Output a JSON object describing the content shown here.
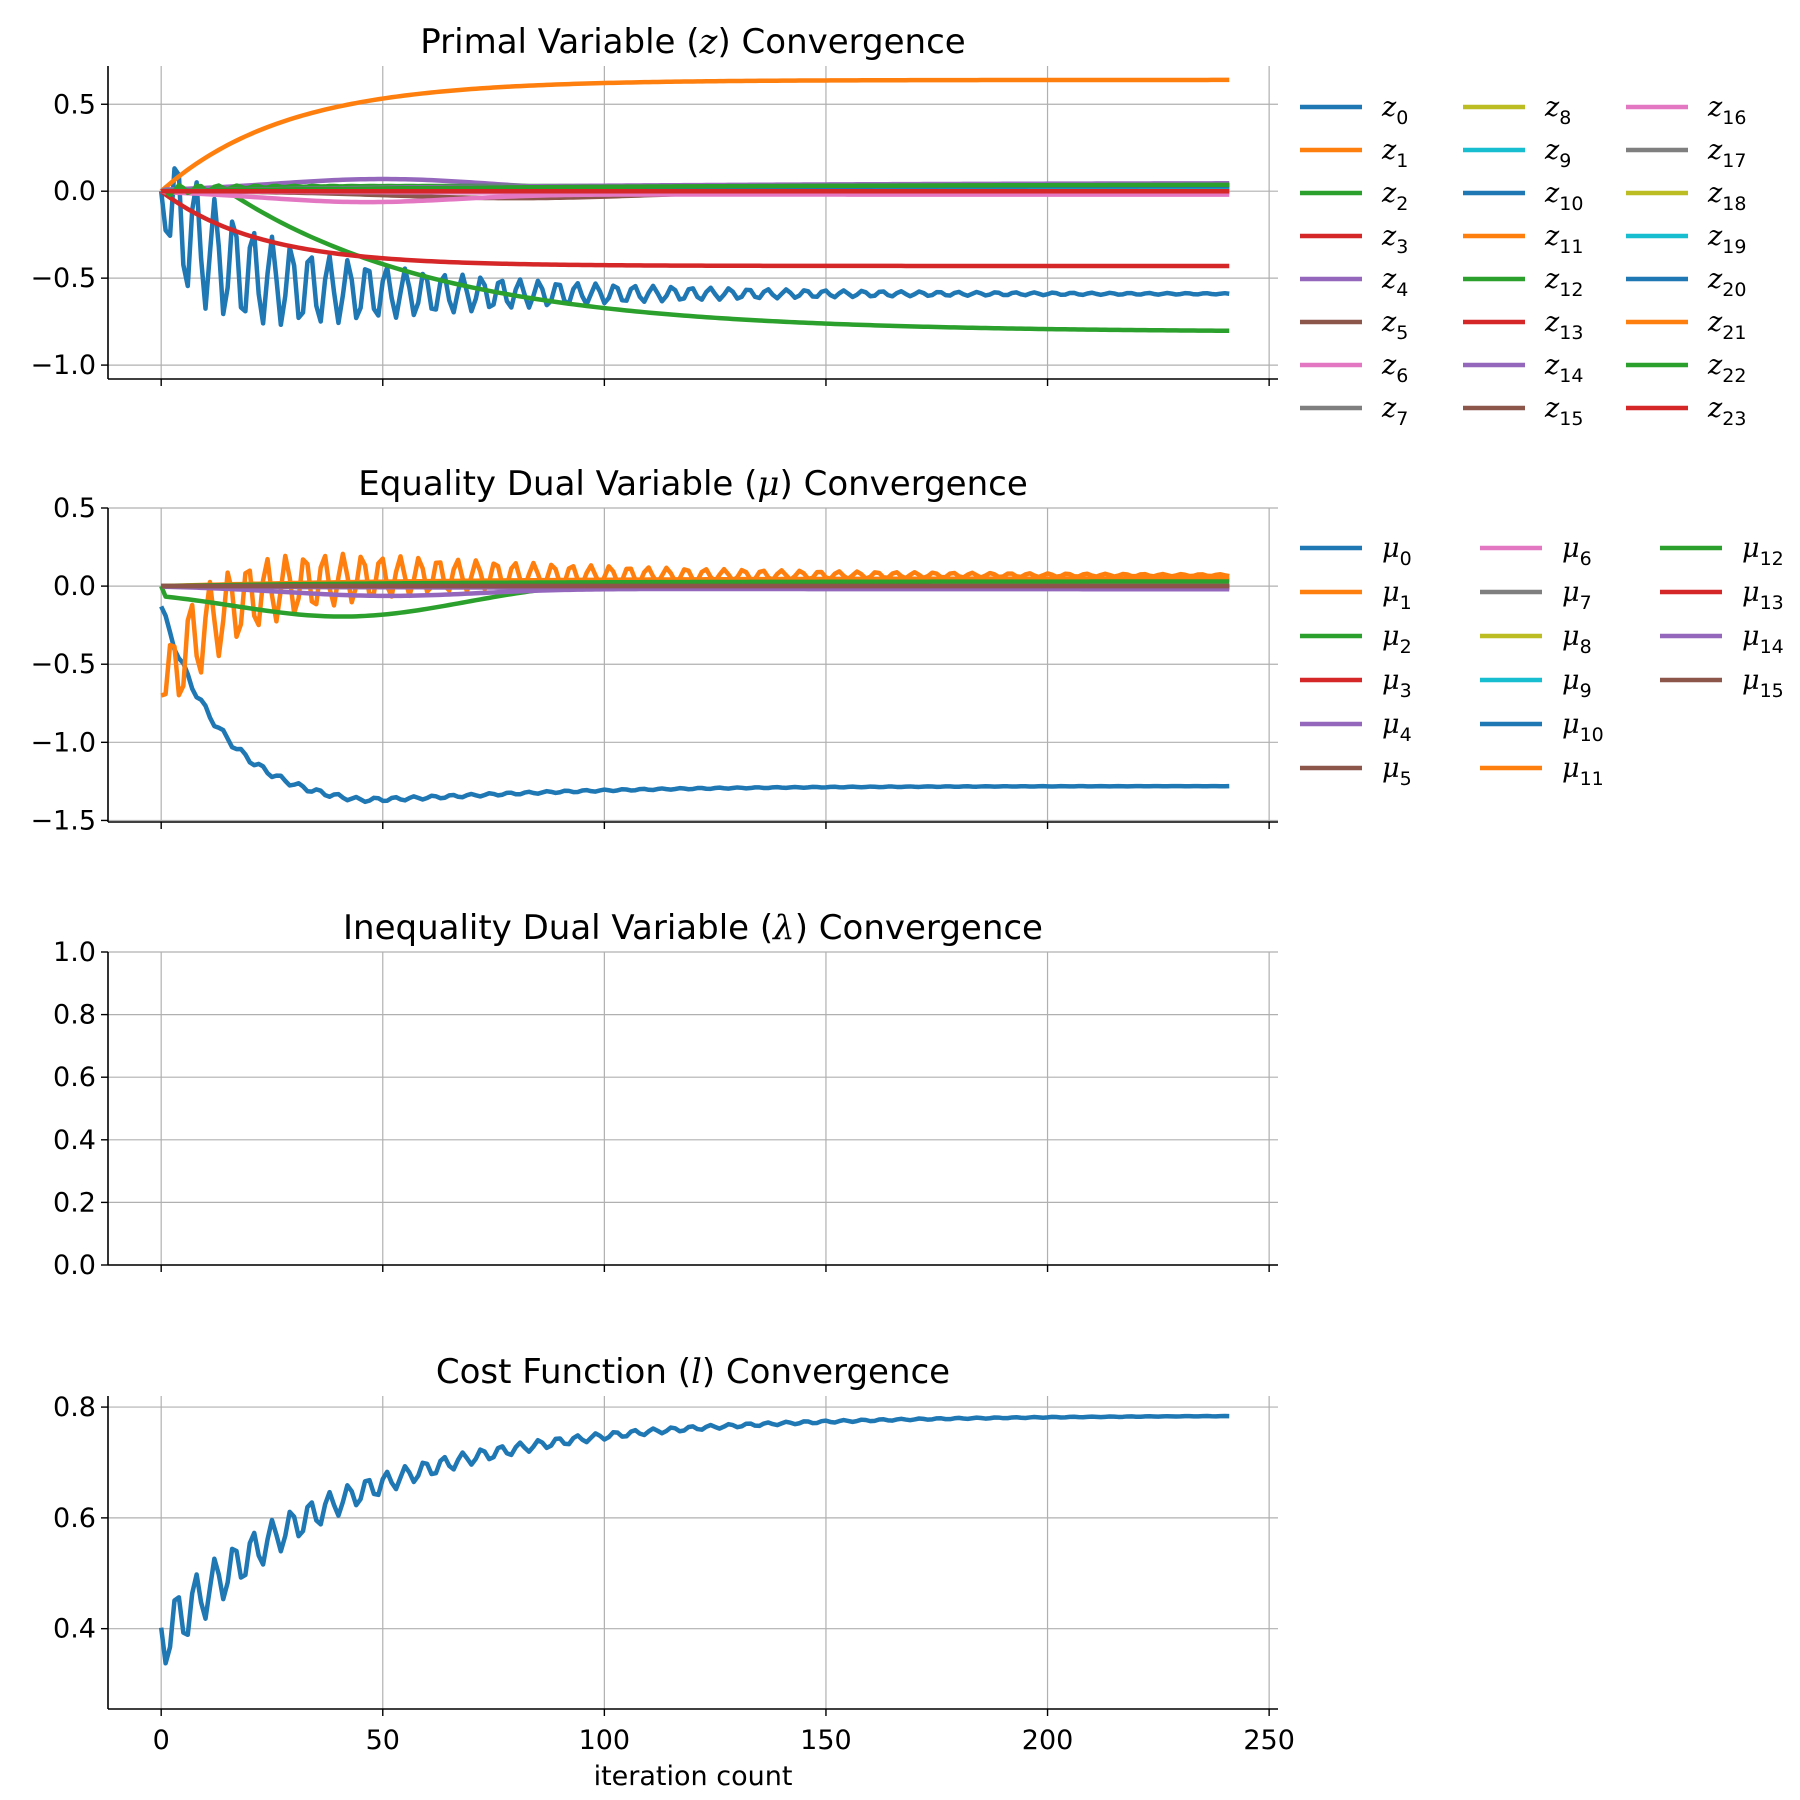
{
  "figure": {
    "xlabel": "iteration count"
  },
  "palette": [
    "#1f77b4",
    "#ff7f0e",
    "#2ca02c",
    "#d62728",
    "#9467bd",
    "#8c564b",
    "#e377c2",
    "#7f7f7f",
    "#bcbd22",
    "#17becf"
  ],
  "chart_data": [
    {
      "type": "line",
      "title": "Primal Variable (z) Convergence",
      "title_parts": [
        "Primal Variable (",
        "z",
        ") Convergence"
      ],
      "xlim": [
        -12,
        252
      ],
      "ylim": [
        -1.08,
        0.72
      ],
      "xticks": [
        0,
        50,
        100,
        150,
        200,
        250
      ],
      "show_xticklabels": false,
      "yticks": [
        -1.0,
        -0.5,
        0.0,
        0.5
      ],
      "ytick_labels": [
        "−1.0",
        "−0.5",
        "0.0",
        "0.5"
      ],
      "grid": true,
      "legend": {
        "position": "outside-right",
        "columns": 3,
        "symbol": "z"
      },
      "series": [
        {
          "name": "z0",
          "sub": "0",
          "color": "#1f77b4",
          "model": "oscillating_decay",
          "start": 0.0,
          "final": -0.59,
          "amp": 0.42,
          "decay": 50,
          "period": 4.3,
          "phase": 1.2
        },
        {
          "name": "z1",
          "sub": "1",
          "color": "#ff7f0e",
          "model": "saturating",
          "start": 0.0,
          "final": 0.64,
          "rate": 28
        },
        {
          "name": "z2",
          "sub": "2",
          "color": "#2ca02c",
          "model": "saturating",
          "start": 0.0,
          "final": -0.81,
          "rate": 48,
          "delay": 15
        },
        {
          "name": "z3",
          "sub": "3",
          "color": "#d62728",
          "model": "saturating",
          "start": 0.0,
          "final": -0.43,
          "rate": 22
        },
        {
          "name": "z4",
          "sub": "4",
          "color": "#9467bd",
          "model": "bump",
          "start": 0.0,
          "final": 0.0,
          "peak": 0.07,
          "center": 50,
          "width": 35
        },
        {
          "name": "z5",
          "sub": "5",
          "color": "#8c564b",
          "model": "bump",
          "start": 0.0,
          "final": 0.0,
          "peak": -0.04,
          "center": 80,
          "width": 40
        },
        {
          "name": "z6",
          "sub": "6",
          "color": "#e377c2",
          "model": "bump",
          "start": 0.0,
          "final": -0.02,
          "peak": -0.05,
          "center": 45,
          "width": 30
        },
        {
          "name": "z7",
          "sub": "7",
          "color": "#7f7f7f",
          "model": "saturating",
          "start": 0.0,
          "final": 0.03,
          "rate": 80
        },
        {
          "name": "z8",
          "sub": "8",
          "color": "#bcbd22",
          "model": "saturating",
          "start": 0.0,
          "final": 0.02,
          "rate": 60
        },
        {
          "name": "z9",
          "sub": "9",
          "color": "#17becf",
          "model": "saturating",
          "start": 0.0,
          "final": 0.02,
          "rate": 70
        },
        {
          "name": "z10",
          "sub": "10",
          "color": "#1f77b4",
          "model": "saturating",
          "start": 0.0,
          "final": 0.04,
          "rate": 90
        },
        {
          "name": "z11",
          "sub": "11",
          "color": "#ff7f0e",
          "model": "saturating",
          "start": 0.0,
          "final": 0.01,
          "rate": 50
        },
        {
          "name": "z12",
          "sub": "12",
          "color": "#2ca02c",
          "model": "oscillating_decay",
          "start": 0.0,
          "final": 0.03,
          "amp": 0.04,
          "decay": 12,
          "period": 4.3,
          "phase": 0.2
        },
        {
          "name": "z13",
          "sub": "13",
          "color": "#d62728",
          "model": "saturating",
          "start": 0.0,
          "final": 0.0,
          "rate": 30
        },
        {
          "name": "z14",
          "sub": "14",
          "color": "#9467bd",
          "model": "saturating",
          "start": 0.0,
          "final": 0.05,
          "rate": 100
        },
        {
          "name": "z15",
          "sub": "15",
          "color": "#8c564b",
          "model": "saturating",
          "start": 0.0,
          "final": 0.04,
          "rate": 110
        },
        {
          "name": "z16",
          "sub": "16",
          "color": "#e377c2",
          "model": "saturating",
          "start": 0.0,
          "final": -0.01,
          "rate": 60
        },
        {
          "name": "z17",
          "sub": "17",
          "color": "#7f7f7f",
          "model": "saturating",
          "start": 0.0,
          "final": 0.03,
          "rate": 70
        },
        {
          "name": "z18",
          "sub": "18",
          "color": "#bcbd22",
          "model": "saturating",
          "start": 0.0,
          "final": 0.01,
          "rate": 60
        },
        {
          "name": "z19",
          "sub": "19",
          "color": "#17becf",
          "model": "saturating",
          "start": 0.0,
          "final": 0.01,
          "rate": 60
        },
        {
          "name": "z20",
          "sub": "20",
          "color": "#1f77b4",
          "model": "saturating",
          "start": 0.0,
          "final": 0.03,
          "rate": 80
        },
        {
          "name": "z21",
          "sub": "21",
          "color": "#ff7f0e",
          "model": "saturating",
          "start": 0.0,
          "final": 0.0,
          "rate": 60
        },
        {
          "name": "z22",
          "sub": "22",
          "color": "#2ca02c",
          "model": "saturating",
          "start": 0.0,
          "final": 0.04,
          "rate": 100
        },
        {
          "name": "z23",
          "sub": "23",
          "color": "#d62728",
          "model": "saturating",
          "start": 0.0,
          "final": 0.0,
          "rate": 40
        }
      ]
    },
    {
      "type": "line",
      "title": "Equality Dual Variable (μ) Convergence",
      "title_parts": [
        "Equality Dual Variable (",
        "μ",
        ") Convergence"
      ],
      "xlim": [
        -12,
        252
      ],
      "ylim": [
        -1.51,
        0.5
      ],
      "xticks": [
        0,
        50,
        100,
        150,
        200,
        250
      ],
      "show_xticklabels": false,
      "yticks": [
        -1.5,
        -1.0,
        -0.5,
        0.0,
        0.5
      ],
      "ytick_labels": [
        "−1.5",
        "−1.0",
        "−0.5",
        "0.0",
        "0.5"
      ],
      "grid": true,
      "legend": {
        "position": "outside-right",
        "columns": 3,
        "symbol": "μ"
      },
      "series": [
        {
          "name": "μ0",
          "sub": "0",
          "color": "#1f77b4",
          "model": "overshoot",
          "start": -0.13,
          "final": -1.28,
          "dip": -1.42,
          "tmin": 45,
          "ripple": 0.03,
          "period": 4.3
        },
        {
          "name": "μ1",
          "sub": "1",
          "color": "#ff7f0e",
          "model": "oscillating_decay",
          "start": -0.7,
          "final": 0.07,
          "amp": 0.32,
          "decay": 60,
          "period": 4.3,
          "phase": 2.9
        },
        {
          "name": "μ2",
          "sub": "2",
          "color": "#2ca02c",
          "model": "bump",
          "start": 0.0,
          "final": 0.04,
          "peak": -0.22,
          "center": 42,
          "width": 38
        },
        {
          "name": "μ3",
          "sub": "3",
          "color": "#d62728",
          "model": "saturating",
          "start": 0.0,
          "final": 0.0,
          "rate": 30
        },
        {
          "name": "μ4",
          "sub": "4",
          "color": "#9467bd",
          "model": "bump",
          "start": 0.0,
          "final": -0.02,
          "peak": -0.05,
          "center": 50,
          "width": 30
        },
        {
          "name": "μ5",
          "sub": "5",
          "color": "#8c564b",
          "model": "saturating",
          "start": 0.0,
          "final": 0.0,
          "rate": 30
        },
        {
          "name": "μ6",
          "sub": "6",
          "color": "#e377c2",
          "model": "saturating",
          "start": 0.0,
          "final": 0.0,
          "rate": 30
        },
        {
          "name": "μ7",
          "sub": "7",
          "color": "#7f7f7f",
          "model": "saturating",
          "start": 0.0,
          "final": -0.01,
          "rate": 40
        },
        {
          "name": "μ8",
          "sub": "8",
          "color": "#bcbd22",
          "model": "saturating",
          "start": 0.0,
          "final": 0.0,
          "rate": 30
        },
        {
          "name": "μ9",
          "sub": "9",
          "color": "#17becf",
          "model": "saturating",
          "start": 0.0,
          "final": 0.0,
          "rate": 30
        },
        {
          "name": "μ10",
          "sub": "10",
          "color": "#1f77b4",
          "model": "saturating",
          "start": 0.0,
          "final": 0.0,
          "rate": 30
        },
        {
          "name": "μ11",
          "sub": "11",
          "color": "#ff7f0e",
          "model": "saturating",
          "start": 0.0,
          "final": 0.05,
          "rate": 60
        },
        {
          "name": "μ12",
          "sub": "12",
          "color": "#2ca02c",
          "model": "saturating",
          "start": 0.0,
          "final": 0.03,
          "rate": 60
        },
        {
          "name": "μ13",
          "sub": "13",
          "color": "#d62728",
          "model": "saturating",
          "start": 0.0,
          "final": 0.0,
          "rate": 30
        },
        {
          "name": "μ14",
          "sub": "14",
          "color": "#9467bd",
          "model": "saturating",
          "start": 0.0,
          "final": -0.01,
          "rate": 40
        },
        {
          "name": "μ15",
          "sub": "15",
          "color": "#8c564b",
          "model": "saturating",
          "start": 0.0,
          "final": 0.0,
          "rate": 30
        }
      ]
    },
    {
      "type": "line",
      "title": "Inequality Dual Variable (λ) Convergence",
      "title_parts": [
        "Inequality Dual Variable (",
        "λ",
        ") Convergence"
      ],
      "xlim": [
        -12,
        252
      ],
      "ylim": [
        0.0,
        1.0
      ],
      "xticks": [
        0,
        50,
        100,
        150,
        200,
        250
      ],
      "show_xticklabels": false,
      "yticks": [
        0.0,
        0.2,
        0.4,
        0.6,
        0.8,
        1.0
      ],
      "ytick_labels": [
        "0.0",
        "0.2",
        "0.4",
        "0.6",
        "0.8",
        "1.0"
      ],
      "grid": true,
      "series": []
    },
    {
      "type": "line",
      "title": "Cost Function (l) Convergence",
      "title_parts": [
        "Cost Function (",
        "l",
        ") Convergence"
      ],
      "xlim": [
        -12,
        252
      ],
      "ylim": [
        0.255,
        0.82
      ],
      "xticks": [
        0,
        50,
        100,
        150,
        200,
        250
      ],
      "xtick_labels": [
        "0",
        "50",
        "100",
        "150",
        "200",
        "250"
      ],
      "show_xticklabels": true,
      "xlabel": "iteration count",
      "yticks": [
        0.4,
        0.6,
        0.8
      ],
      "ytick_labels": [
        "0.4",
        "0.6",
        "0.8"
      ],
      "grid": true,
      "series": [
        {
          "name": "l",
          "color": "#1f77b4",
          "model": "cost",
          "start": 0.38,
          "final": 0.785,
          "rate": 42,
          "amp": 0.06,
          "decay": 45,
          "period": 4.3,
          "phase": 1.2
        }
      ]
    }
  ]
}
